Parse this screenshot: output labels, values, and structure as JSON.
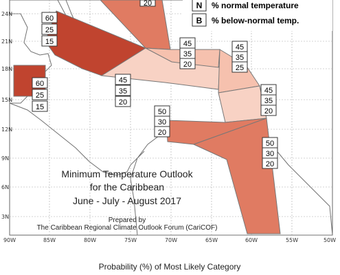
{
  "title": {
    "line1": "Minimum Temperature Outlook",
    "line2": "for the Caribbean",
    "line3": "June - July - August 2017"
  },
  "credit": {
    "line1": "Prepared by",
    "line2": "The Caribbean Regional Climate Outlook Forum (CariCOF)"
  },
  "caption": "Probability (%) of Most Likely Category",
  "legend": {
    "items": [
      {
        "key": "N",
        "text": "% normal temperature"
      },
      {
        "key": "B",
        "text": "% below-normal temp."
      }
    ]
  },
  "axes": {
    "lat_labels": [
      "24N",
      "21N",
      "18N",
      "15N",
      "12N",
      "9N",
      "6N",
      "3N"
    ],
    "lon_labels": [
      "90W",
      "85W",
      "80W",
      "75W",
      "70W",
      "65W",
      "60W",
      "55W",
      "50W"
    ]
  },
  "colors": {
    "ocean": "#ffffff",
    "grid": "#a8a8a8",
    "coast": "#6a6a6a",
    "dark_red": "#c0442f",
    "mid_red": "#e07b62",
    "light_salmon": "#f6c1ae",
    "pale_salmon": "#f8d2c4"
  },
  "regions": [
    {
      "id": "top-partial",
      "values": [
        "20"
      ]
    },
    {
      "id": "cuba-bahamas",
      "values": [
        "60",
        "25",
        "15"
      ]
    },
    {
      "id": "belize-yucatan",
      "values": [
        "60",
        "25",
        "15"
      ]
    },
    {
      "id": "jamaica-caribbean",
      "values": [
        "45",
        "35",
        "20"
      ]
    },
    {
      "id": "hispaniola",
      "values": [
        "45",
        "35",
        "20"
      ]
    },
    {
      "id": "leeward-islands",
      "values": [
        "45",
        "35",
        "25"
      ]
    },
    {
      "id": "windward-islands",
      "values": [
        "45",
        "35",
        "20"
      ]
    },
    {
      "id": "abc-islands",
      "values": [
        "50",
        "30",
        "20"
      ]
    },
    {
      "id": "guianas",
      "values": [
        "50",
        "30",
        "20"
      ]
    }
  ]
}
